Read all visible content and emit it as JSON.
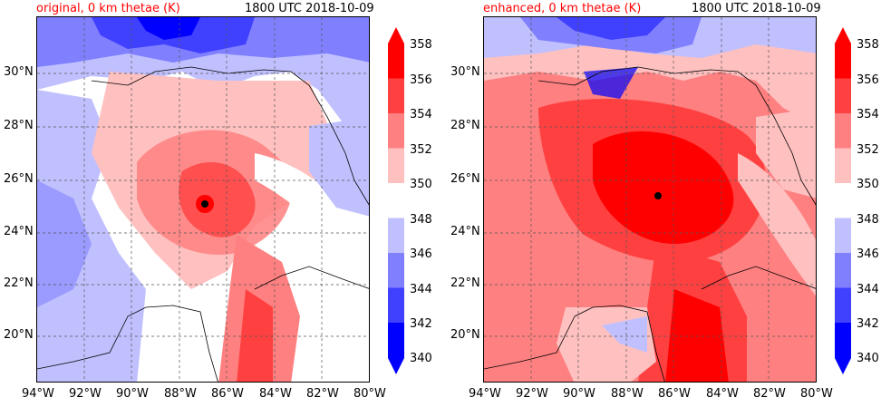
{
  "panels": [
    {
      "title_left": "original, 0 km thetae (K)",
      "title_right": "1800 UTC 2018-10-09",
      "title_left_color": "#ff0000",
      "variant": "original"
    },
    {
      "title_left": "enhanced, 0 km thetae (K)",
      "title_right": "1800 UTC 2018-10-09",
      "title_left_color": "#ff0000",
      "variant": "enhanced"
    }
  ],
  "axes": {
    "lon_ticks": [
      "94°W",
      "92°W",
      "90°W",
      "88°W",
      "86°W",
      "84°W",
      "82°W",
      "80°W"
    ],
    "lat_ticks": [
      "30°N",
      "28°N",
      "26°N",
      "24°N",
      "22°N",
      "20°N"
    ]
  },
  "colorbar": {
    "ticks": [
      "358",
      "356",
      "354",
      "352",
      "350",
      "348",
      "346",
      "344",
      "342",
      "340"
    ],
    "colors": [
      "#ff0000",
      "#ff4040",
      "#ff8080",
      "#ffc0c0",
      "#ffffff",
      "#c0c0ff",
      "#8080ff",
      "#4040ff",
      "#0000ff"
    ]
  }
}
